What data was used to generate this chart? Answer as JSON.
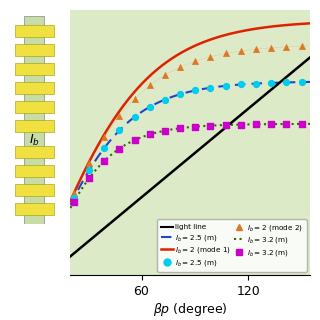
{
  "xlabel": "$\\beta p$ (degree)",
  "xlim": [
    20,
    155
  ],
  "ylim": [
    0.02,
    0.52
  ],
  "xticks": [
    60,
    120
  ],
  "bg_color": "#ddeac8",
  "inset_color": "#b8cc98",
  "light_line_color": "#000000",
  "mode1_color": "#dd2200",
  "mode2_color": "#dd7722",
  "mode3_color": "#2244cc",
  "mode3_dot_color": "#00ccee",
  "mode4_color": "#336600",
  "mode4_dot_color": "#cc00cc"
}
